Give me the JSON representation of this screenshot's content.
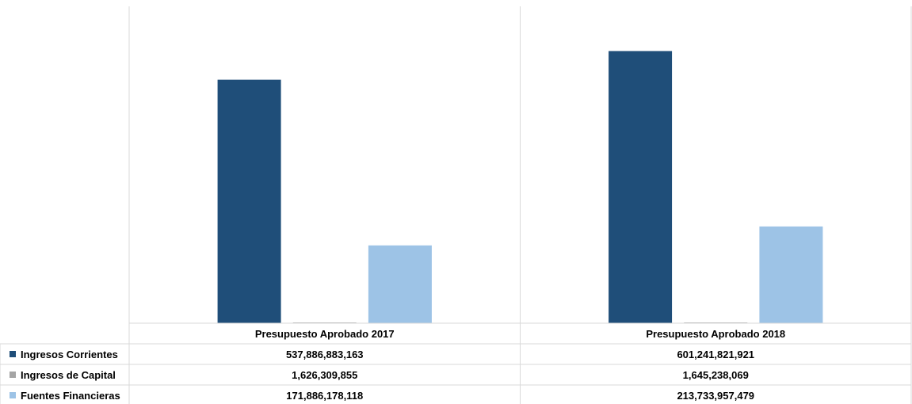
{
  "chart_data": {
    "type": "bar",
    "categories": [
      "Presupuesto Aprobado 2017",
      "Presupuesto Aprobado 2018"
    ],
    "series": [
      {
        "name": "Ingresos Corrientes",
        "color": "#1f4e79",
        "values": [
          537886883163,
          601241821921
        ],
        "labels": [
          "537,886,883,163",
          "601,241,821,921"
        ]
      },
      {
        "name": "Ingresos de Capital",
        "color": "#a5a5a5",
        "values": [
          1626309855,
          1645238069
        ],
        "labels": [
          "1,626,309,855",
          "1,645,238,069"
        ]
      },
      {
        "name": "Fuentes Financieras",
        "color": "#9dc3e6",
        "values": [
          171886178118,
          213733957479
        ],
        "labels": [
          "171,886,178,118",
          "213,733,957,479"
        ]
      }
    ],
    "ylim": [
      0,
      700000000000
    ],
    "grid": false,
    "legend": "data-table",
    "data_table": true
  }
}
